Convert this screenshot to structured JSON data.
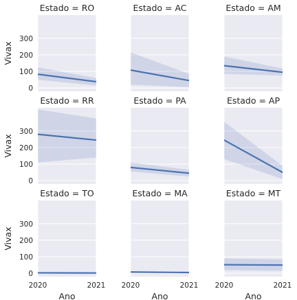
{
  "chart_data": {
    "type": "line",
    "layout": "facet-grid",
    "xlabel": "Ano",
    "ylabel": "Vivax",
    "xlim": [
      2020,
      2021
    ],
    "xticks": [
      2020,
      2021
    ],
    "ylim": [
      -20,
      440
    ],
    "yticks": [
      0,
      100,
      200,
      300
    ],
    "grid": true,
    "colors": {
      "line": "#4c72b0",
      "band": "#4c72b0",
      "panel": "#eaeaf2",
      "grid": "#ffffff"
    },
    "facet_prefix": "Estado = ",
    "facets": [
      {
        "name": "RO",
        "x": [
          2020,
          2021
        ],
        "y": [
          83,
          38
        ],
        "ci_lower": [
          50,
          15
        ],
        "ci_upper": [
          125,
          60
        ]
      },
      {
        "name": "AC",
        "x": [
          2020,
          2021
        ],
        "y": [
          108,
          45
        ],
        "ci_lower": [
          20,
          5
        ],
        "ci_upper": [
          215,
          85
        ]
      },
      {
        "name": "AM",
        "x": [
          2020,
          2021
        ],
        "y": [
          135,
          95
        ],
        "ci_lower": [
          85,
          75
        ],
        "ci_upper": [
          190,
          118
        ]
      },
      {
        "name": "RR",
        "x": [
          2020,
          2021
        ],
        "y": [
          280,
          245
        ],
        "ci_lower": [
          110,
          140
        ],
        "ci_upper": [
          430,
          375
        ]
      },
      {
        "name": "PA",
        "x": [
          2020,
          2021
        ],
        "y": [
          80,
          45
        ],
        "ci_lower": [
          55,
          25
        ],
        "ci_upper": [
          110,
          65
        ]
      },
      {
        "name": "AP",
        "x": [
          2020,
          2021
        ],
        "y": [
          245,
          50
        ],
        "ci_lower": [
          130,
          10
        ],
        "ci_upper": [
          355,
          90
        ]
      },
      {
        "name": "TO",
        "x": [
          2020,
          2021
        ],
        "y": [
          3,
          2
        ],
        "ci_lower": [
          -2,
          -3
        ],
        "ci_upper": [
          8,
          7
        ]
      },
      {
        "name": "MA",
        "x": [
          2020,
          2021
        ],
        "y": [
          8,
          5
        ],
        "ci_lower": [
          3,
          0
        ],
        "ci_upper": [
          13,
          10
        ]
      },
      {
        "name": "MT",
        "x": [
          2020,
          2021
        ],
        "y": [
          52,
          50
        ],
        "ci_lower": [
          20,
          15
        ],
        "ci_upper": [
          90,
          85
        ]
      }
    ]
  }
}
